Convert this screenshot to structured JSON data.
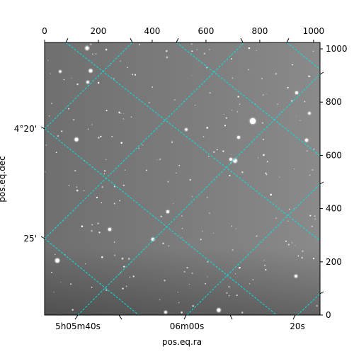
{
  "figure": {
    "x_axis_label": "pos.eq.ra",
    "y_axis_label": "pos.eq.dec",
    "bottom_ticks": [
      "5h05m40s",
      "06m00s",
      "20s"
    ],
    "left_ticks": [
      "4°20'",
      "25'"
    ],
    "top_ticks": [
      "0",
      "200",
      "400",
      "600",
      "800",
      "1000"
    ],
    "right_ticks": [
      "1000",
      "800",
      "600",
      "400",
      "200",
      "0"
    ],
    "grid_color": "#00e5e5",
    "image_background": "#7a7a7a"
  },
  "chart_data": {
    "type": "scatter",
    "title": "",
    "xlabel": "pos.eq.ra",
    "ylabel": "pos.eq.dec",
    "pixel_axes": {
      "top": {
        "ticks": [
          0,
          200,
          400,
          600,
          800,
          1000
        ],
        "range": [
          0,
          1024
        ]
      },
      "right": {
        "ticks": [
          0,
          200,
          400,
          600,
          800,
          1000
        ],
        "range": [
          0,
          1024
        ]
      }
    },
    "world_axes": {
      "bottom": {
        "label": "pos.eq.ra",
        "ticks": [
          "5h05m40s",
          "06m00s",
          "20s"
        ]
      },
      "left": {
        "label": "pos.eq.dec",
        "ticks": [
          "4°20'",
          "25'"
        ]
      }
    },
    "grid": true
  }
}
